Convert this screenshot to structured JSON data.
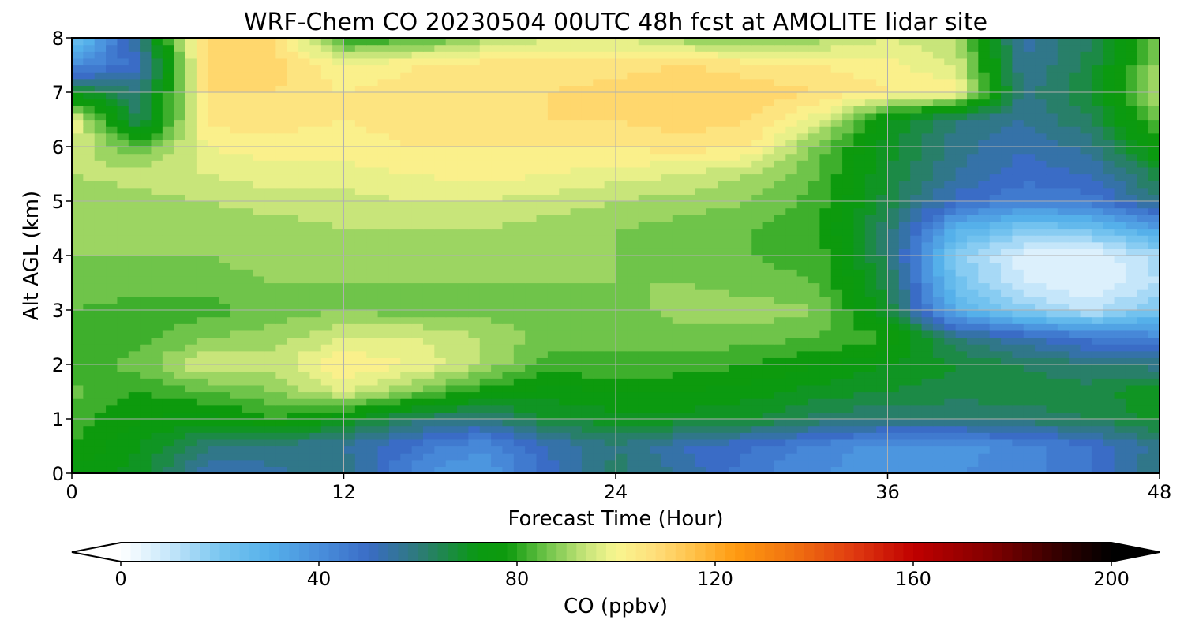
{
  "chart_data": {
    "type": "heatmap",
    "title": "WRF-Chem CO  20230504 00UTC 48h fcst at AMOLITE lidar site",
    "xlabel": "Forecast Time (Hour)",
    "ylabel": "Alt AGL (km)",
    "xlim": [
      0,
      48
    ],
    "ylim": [
      0,
      8
    ],
    "x_ticks": [
      "0",
      "12",
      "24",
      "36",
      "48"
    ],
    "y_ticks": [
      "0",
      "1",
      "2",
      "3",
      "4",
      "5",
      "6",
      "7",
      "8"
    ],
    "grid": true,
    "x": [
      0,
      3,
      6,
      9,
      12,
      15,
      18,
      21,
      24,
      27,
      30,
      33,
      36,
      39,
      42,
      45,
      48
    ],
    "y": [
      0,
      0.5,
      1,
      1.5,
      2,
      2.5,
      3,
      3.5,
      4,
      4.5,
      5,
      5.5,
      6,
      6.5,
      7,
      7.5,
      8
    ],
    "z": [
      [
        74,
        70,
        52,
        55,
        60,
        42,
        35,
        50,
        62,
        55,
        45,
        40,
        38,
        40,
        42,
        48,
        60
      ],
      [
        80,
        72,
        60,
        58,
        56,
        48,
        40,
        52,
        60,
        52,
        48,
        42,
        38,
        38,
        42,
        48,
        58
      ],
      [
        82,
        76,
        74,
        80,
        72,
        62,
        58,
        68,
        70,
        70,
        68,
        62,
        60,
        60,
        62,
        64,
        70
      ],
      [
        85,
        80,
        84,
        88,
        96,
        88,
        78,
        74,
        76,
        76,
        74,
        70,
        68,
        66,
        66,
        66,
        72
      ],
      [
        80,
        86,
        96,
        94,
        104,
        100,
        92,
        82,
        84,
        82,
        80,
        76,
        72,
        68,
        64,
        60,
        58
      ],
      [
        80,
        82,
        88,
        90,
        96,
        96,
        92,
        86,
        84,
        86,
        86,
        84,
        80,
        60,
        52,
        46,
        42
      ],
      [
        84,
        82,
        82,
        86,
        88,
        86,
        86,
        86,
        86,
        90,
        90,
        88,
        68,
        30,
        18,
        10,
        22
      ],
      [
        86,
        86,
        86,
        88,
        88,
        88,
        88,
        88,
        88,
        88,
        86,
        84,
        66,
        22,
        8,
        4,
        12
      ],
      [
        88,
        88,
        88,
        90,
        90,
        90,
        90,
        90,
        88,
        86,
        84,
        82,
        62,
        18,
        6,
        4,
        14
      ],
      [
        88,
        90,
        90,
        90,
        92,
        92,
        92,
        90,
        88,
        86,
        84,
        80,
        62,
        30,
        20,
        22,
        34
      ],
      [
        90,
        90,
        92,
        94,
        94,
        96,
        96,
        94,
        92,
        90,
        88,
        82,
        66,
        50,
        44,
        46,
        60
      ],
      [
        92,
        94,
        96,
        98,
        98,
        100,
        102,
        100,
        98,
        96,
        92,
        84,
        68,
        56,
        50,
        52,
        66
      ],
      [
        96,
        84,
        100,
        102,
        102,
        104,
        104,
        104,
        104,
        106,
        104,
        86,
        70,
        58,
        52,
        58,
        78
      ],
      [
        100,
        62,
        106,
        106,
        104,
        106,
        106,
        108,
        108,
        110,
        108,
        98,
        72,
        60,
        56,
        64,
        86
      ],
      [
        70,
        60,
        108,
        108,
        104,
        106,
        108,
        108,
        110,
        112,
        110,
        108,
        104,
        102,
        58,
        68,
        94
      ],
      [
        40,
        50,
        110,
        110,
        100,
        104,
        106,
        106,
        106,
        108,
        106,
        104,
        102,
        96,
        56,
        66,
        90
      ],
      [
        20,
        60,
        112,
        108,
        80,
        82,
        90,
        96,
        96,
        90,
        86,
        90,
        96,
        92,
        54,
        64,
        86
      ]
    ],
    "colorbar": {
      "label": "CO  (ppbv)",
      "min": 0,
      "max": 200,
      "extend": "both",
      "ticks": [
        "0",
        "40",
        "80",
        "120",
        "160",
        "200"
      ],
      "colors": [
        [
          0,
          "#ffffff"
        ],
        [
          10,
          "#c5e6fa"
        ],
        [
          20,
          "#79c6f0"
        ],
        [
          30,
          "#55b0ea"
        ],
        [
          40,
          "#4a8fdc"
        ],
        [
          50,
          "#3a6cc6"
        ],
        [
          60,
          "#2e7a7a"
        ],
        [
          72,
          "#0a9a12"
        ],
        [
          78,
          "#0d9a0d"
        ],
        [
          86,
          "#6fc44a"
        ],
        [
          94,
          "#c8e57a"
        ],
        [
          100,
          "#f8f690"
        ],
        [
          108,
          "#ffde7a"
        ],
        [
          116,
          "#ffc046"
        ],
        [
          124,
          "#ff9a10"
        ],
        [
          136,
          "#f07010"
        ],
        [
          148,
          "#e03a10"
        ],
        [
          160,
          "#c00000"
        ],
        [
          176,
          "#800000"
        ],
        [
          190,
          "#300000"
        ],
        [
          200,
          "#000000"
        ]
      ]
    }
  }
}
